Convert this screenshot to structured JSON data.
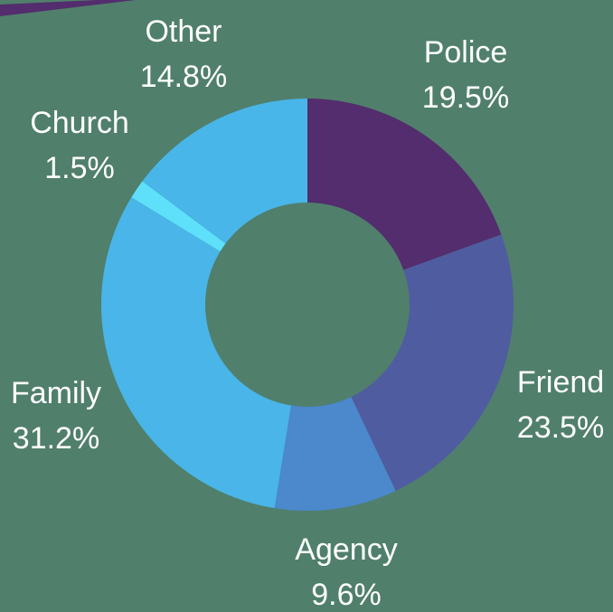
{
  "chart_data": {
    "type": "donut",
    "categories": [
      "Police",
      "Friend",
      "Agency",
      "Family",
      "Church",
      "Other"
    ],
    "values": [
      19.5,
      23.5,
      9.6,
      31.2,
      1.5,
      14.8
    ],
    "value_labels": [
      "19.5%",
      "23.5%",
      "9.6%",
      "31.2%",
      "1.5%",
      "14.8%"
    ],
    "colors": [
      "#532d6d",
      "#4f5ca0",
      "#4b88cc",
      "#49b5e8",
      "#5ee0fa",
      "#48b6e8"
    ]
  }
}
